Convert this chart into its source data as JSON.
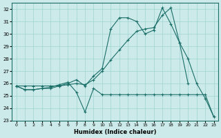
{
  "title": "",
  "xlabel": "Humidex (Indice chaleur)",
  "ylabel": "",
  "xlim": [
    -0.5,
    23.5
  ],
  "ylim": [
    23,
    32.5
  ],
  "yticks": [
    23,
    24,
    25,
    26,
    27,
    28,
    29,
    30,
    31,
    32
  ],
  "xticks": [
    0,
    1,
    2,
    3,
    4,
    5,
    6,
    7,
    8,
    9,
    10,
    11,
    12,
    13,
    14,
    15,
    16,
    17,
    18,
    19,
    20,
    21,
    22,
    23
  ],
  "bg_color": "#cceae9",
  "line_color": "#1a6e68",
  "grid_color": "#9dd4d2",
  "series": [
    [
      25.8,
      25.5,
      25.5,
      25.6,
      25.6,
      25.8,
      26.0,
      26.3,
      25.8,
      26.6,
      27.2,
      30.4,
      31.3,
      31.3,
      31.0,
      30.0,
      30.3,
      32.1,
      30.8,
      29.3,
      26.0,
      null,
      null,
      null
    ],
    [
      25.8,
      25.5,
      25.5,
      25.6,
      25.7,
      25.9,
      26.1,
      25.3,
      23.7,
      25.6,
      25.1,
      25.1,
      25.1,
      25.1,
      25.1,
      25.1,
      25.1,
      25.1,
      25.1,
      25.1,
      25.1,
      25.1,
      25.1,
      23.3
    ],
    [
      25.8,
      25.8,
      25.8,
      25.8,
      25.8,
      25.8,
      25.9,
      26.0,
      25.9,
      26.3,
      27.0,
      27.9,
      28.7,
      29.5,
      30.2,
      30.4,
      30.5,
      31.5,
      32.1,
      29.3,
      28.0,
      26.0,
      24.8,
      23.3
    ]
  ]
}
